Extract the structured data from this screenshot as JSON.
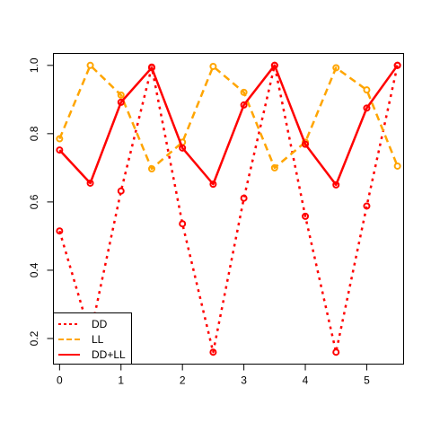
{
  "chart_data": {
    "type": "line",
    "x": [
      0,
      0.5,
      1,
      1.5,
      2,
      2.5,
      3,
      3.5,
      4,
      4.5,
      5,
      5.5
    ],
    "xlim": [
      -0.1,
      5.6
    ],
    "ylim": [
      0.125,
      1.035
    ],
    "xticks": [
      0,
      1,
      2,
      3,
      4,
      5
    ],
    "yticks": [
      0.2,
      0.4,
      0.6,
      0.8,
      1.0
    ],
    "xtick_labels": [
      "0",
      "1",
      "2",
      "3",
      "4",
      "5"
    ],
    "ytick_labels": [
      "0.2",
      "0.4",
      "0.6",
      "0.8",
      "1.0"
    ],
    "title": "",
    "xlabel": "",
    "ylabel": "",
    "grid": false,
    "legend_position": "bottom-left",
    "series": [
      {
        "name": "DD",
        "color": "#ff0000",
        "linestyle": "dotted",
        "values": [
          0.515,
          0.21,
          0.632,
          0.995,
          0.536,
          0.16,
          0.611,
          1.0,
          0.558,
          0.16,
          0.588,
          1.0
        ]
      },
      {
        "name": "LL",
        "color": "#ffa500",
        "linestyle": "dashed",
        "values": [
          0.785,
          1.0,
          0.913,
          0.697,
          0.775,
          0.997,
          0.921,
          0.7,
          0.775,
          0.993,
          0.928,
          0.705
        ]
      },
      {
        "name": "DD+LL",
        "color": "#ff0000",
        "linestyle": "solid",
        "values": [
          0.752,
          0.655,
          0.892,
          0.993,
          0.758,
          0.652,
          0.884,
          1.0,
          0.769,
          0.65,
          0.875,
          1.0
        ]
      }
    ]
  }
}
